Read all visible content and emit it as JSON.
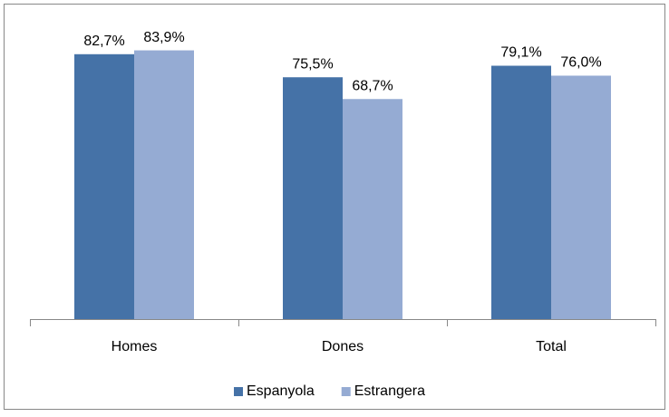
{
  "chart_data": {
    "type": "bar",
    "categories": [
      "Homes",
      "Dones",
      "Total"
    ],
    "series": [
      {
        "name": "Espanyola",
        "color": "#4572a7",
        "values": [
          82.7,
          75.5,
          79.1
        ],
        "value_labels": [
          "82,7%",
          "75,5%",
          "79,1%"
        ]
      },
      {
        "name": "Estrangera",
        "color": "#95abd3",
        "values": [
          83.9,
          68.7,
          76.0
        ],
        "value_labels": [
          "83,9%",
          "68,7%",
          "76,0%"
        ]
      }
    ],
    "ylim": [
      0,
      90
    ],
    "legend": "bottom"
  }
}
